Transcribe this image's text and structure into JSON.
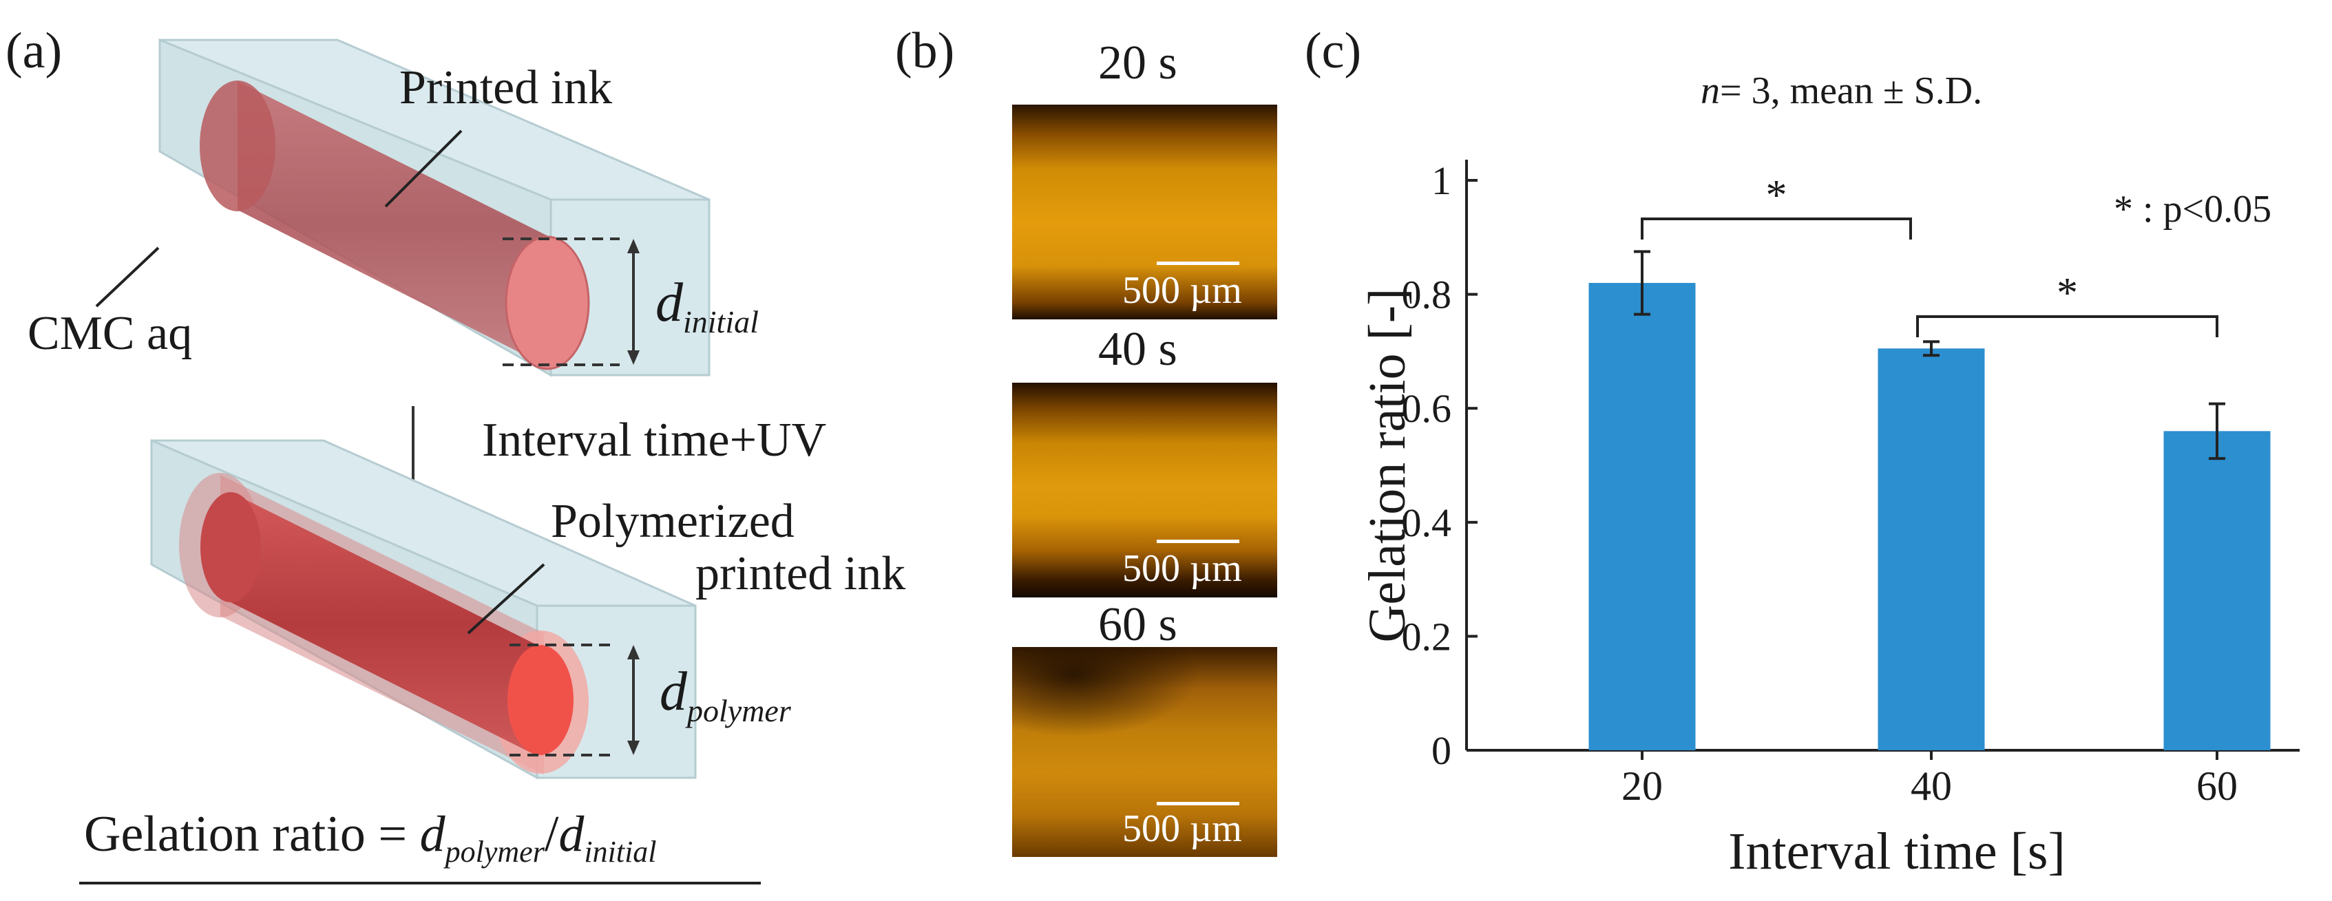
{
  "panel_a": {
    "label": "(a)",
    "printed_ink": "Printed ink",
    "cmc_aq": "CMC aq",
    "d_initial_base": "d",
    "d_initial_sub": "initial",
    "arrow_text": "Interval time+UV",
    "polymerized_line1": "Polymerized",
    "polymerized_line2": "printed ink",
    "d_polymer_base": "d",
    "d_polymer_sub": "polymer",
    "formula_prefix": "Gelation ratio = ",
    "formula_num_base": "d",
    "formula_num_sub": "polymer",
    "formula_slash": "/",
    "formula_den_base": "d",
    "formula_den_sub": "initial",
    "colors": {
      "block": "#cfe3e6",
      "ink": "#b85a5e",
      "ink_cap": "#e88a8c",
      "polymer": "#d94848",
      "polymer_cap": "#f05a50"
    }
  },
  "panel_b": {
    "label": "(b)",
    "images": [
      {
        "time": "20 s",
        "scale": "500 µm"
      },
      {
        "time": "40 s",
        "scale": "500 µm"
      },
      {
        "time": "60 s",
        "scale": "500 µm"
      }
    ]
  },
  "panel_c": {
    "label": "(c)",
    "stats_italic": "n",
    "stats_text": "= 3, mean ± S.D.",
    "sig_note": "* : p<0.05",
    "sig_star": "*"
  },
  "chart_data": {
    "type": "bar",
    "categories": [
      "20",
      "40",
      "60"
    ],
    "values": [
      0.82,
      0.705,
      0.56
    ],
    "errors": [
      0.055,
      0.012,
      0.048
    ],
    "xlabel": "Interval time [s]",
    "ylabel": "Gelation ratio [-]",
    "ylim": [
      0,
      1
    ],
    "yticks": [
      "0",
      "0.2",
      "0.4",
      "0.6",
      "0.8",
      "1"
    ],
    "bar_color": "#2b8fd0",
    "significance": [
      {
        "from": 0,
        "to": 1,
        "label": "*"
      },
      {
        "from": 1,
        "to": 2,
        "label": "*"
      }
    ]
  }
}
